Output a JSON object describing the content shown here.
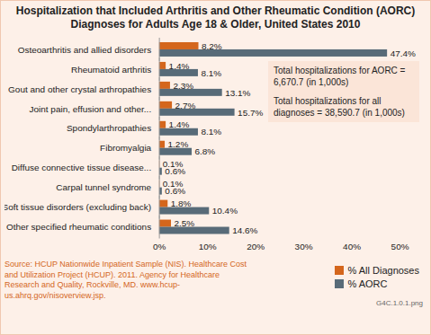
{
  "chart_data": {
    "type": "bar",
    "orientation": "horizontal",
    "title": "Hospitalization that Included Arthritis and Other Rheumatic Condition (AORC) Diagnoses for Adults Age 18 & Older, United States 2010",
    "categories": [
      "Osteoarthritis and allied disorders",
      "Rheumatoid arthritis",
      "Gout and other crystal arthropathies",
      "Joint pain, effusion and other...",
      "Spondylarthropathies",
      "Fibromyalgia",
      "Diffuse connective tissue disease...",
      "Carpal tunnel syndrome",
      "Soft tissue disorders (excluding back)",
      "Other specified rheumatic conditions"
    ],
    "series": [
      {
        "name": "% All Diagnoses",
        "color": "#d4661c",
        "values": [
          8.2,
          1.4,
          2.3,
          2.7,
          1.4,
          1.2,
          0.1,
          0.1,
          1.8,
          2.5
        ],
        "value_labels": [
          "8.2%",
          "1.4%",
          "2.3%",
          "2.7%",
          "1.4%",
          "1.2%",
          "0.1%",
          "0.1%",
          "1.8%",
          "2.5%"
        ]
      },
      {
        "name": "% AORC",
        "color": "#586b78",
        "values": [
          47.4,
          8.1,
          13.1,
          15.7,
          8.1,
          6.8,
          0.6,
          0.6,
          10.4,
          14.6
        ],
        "value_labels": [
          "47.4%",
          "8.1%",
          "13.1%",
          "15.7%",
          "8.1%",
          "6.8%",
          "0.6%",
          "0.6%",
          "10.4%",
          "14.6%"
        ]
      }
    ],
    "xlim": [
      0,
      50
    ],
    "xticks": [
      {
        "value": 0,
        "label": "0%"
      },
      {
        "value": 10,
        "label": "10%"
      },
      {
        "value": 20,
        "label": "20%"
      },
      {
        "value": 30,
        "label": "30%"
      },
      {
        "value": 40,
        "label": "40%"
      },
      {
        "value": 50,
        "label": "50%"
      }
    ],
    "grid": false,
    "data_labels": true,
    "legend": "bottom-right",
    "annotations": [
      "Total hospitalizations for AORC = 6,670.7 (in 1,000s)",
      "Total hospitalizations for all diagnoses = 38,590.7 (in 1,000s)"
    ],
    "source": "Source: HCUP Nationwide Inpatient Sample (NIS). Healthcare Cost and Utilization Project (HCUP). 2011. Agency for Healthcare Research and Quality, Rockville, MD. www.hcup-us.ahrq.gov/nisoverview.jsp.",
    "footnote": "G4C.1.0.1.png"
  }
}
